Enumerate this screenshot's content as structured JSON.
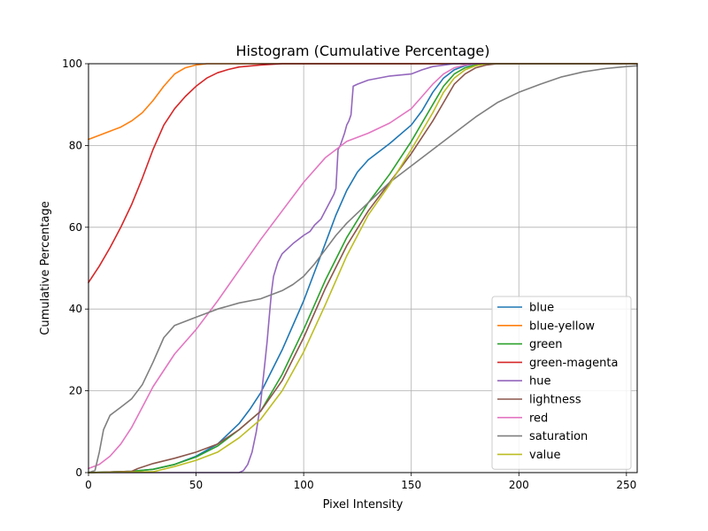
{
  "chart_data": {
    "type": "line",
    "title": "Histogram (Cumulative Percentage)",
    "xlabel": "Pixel Intensity",
    "ylabel": "Cumulative Percentage",
    "xlim": [
      0,
      255
    ],
    "ylim": [
      0,
      100
    ],
    "xticks": [
      0,
      50,
      100,
      150,
      200,
      250
    ],
    "yticks": [
      0,
      20,
      40,
      60,
      80,
      100
    ],
    "grid": true,
    "legend_position": "lower-right",
    "series": [
      {
        "name": "blue",
        "color": "#1f77b4",
        "points": [
          [
            0,
            0
          ],
          [
            20,
            0.3
          ],
          [
            30,
            0.8
          ],
          [
            40,
            2
          ],
          [
            50,
            4
          ],
          [
            60,
            7
          ],
          [
            70,
            12
          ],
          [
            75,
            15.5
          ],
          [
            80,
            19.5
          ],
          [
            90,
            30
          ],
          [
            100,
            42
          ],
          [
            105,
            49
          ],
          [
            110,
            56
          ],
          [
            115,
            63
          ],
          [
            120,
            69
          ],
          [
            125,
            73.5
          ],
          [
            130,
            76.5
          ],
          [
            140,
            80.5
          ],
          [
            150,
            85
          ],
          [
            155,
            88.5
          ],
          [
            160,
            93
          ],
          [
            165,
            96.5
          ],
          [
            170,
            98.5
          ],
          [
            175,
            99.5
          ],
          [
            180,
            100
          ],
          [
            255,
            100
          ]
        ]
      },
      {
        "name": "blue-yellow",
        "color": "#ff7f0e",
        "points": [
          [
            0,
            81.5
          ],
          [
            5,
            82.5
          ],
          [
            10,
            83.5
          ],
          [
            15,
            84.5
          ],
          [
            20,
            86
          ],
          [
            25,
            88
          ],
          [
            30,
            91
          ],
          [
            35,
            94.5
          ],
          [
            40,
            97.5
          ],
          [
            45,
            99
          ],
          [
            50,
            99.7
          ],
          [
            55,
            100
          ],
          [
            255,
            100
          ]
        ]
      },
      {
        "name": "green",
        "color": "#2ca02c",
        "points": [
          [
            0,
            0
          ],
          [
            20,
            0.3
          ],
          [
            30,
            0.8
          ],
          [
            40,
            2
          ],
          [
            50,
            3.8
          ],
          [
            60,
            6.5
          ],
          [
            70,
            10.5
          ],
          [
            80,
            15
          ],
          [
            90,
            24
          ],
          [
            100,
            35
          ],
          [
            110,
            47
          ],
          [
            120,
            57.5
          ],
          [
            130,
            66
          ],
          [
            140,
            73
          ],
          [
            150,
            81
          ],
          [
            160,
            90
          ],
          [
            165,
            94.5
          ],
          [
            170,
            97.5
          ],
          [
            175,
            99
          ],
          [
            180,
            99.7
          ],
          [
            185,
            100
          ],
          [
            255,
            100
          ]
        ]
      },
      {
        "name": "green-magenta",
        "color": "#d62728",
        "points": [
          [
            0,
            46.5
          ],
          [
            5,
            50.5
          ],
          [
            10,
            55
          ],
          [
            15,
            60
          ],
          [
            20,
            65.5
          ],
          [
            25,
            72
          ],
          [
            30,
            79
          ],
          [
            35,
            85
          ],
          [
            40,
            89
          ],
          [
            45,
            92
          ],
          [
            50,
            94.5
          ],
          [
            55,
            96.5
          ],
          [
            60,
            97.8
          ],
          [
            65,
            98.6
          ],
          [
            70,
            99.2
          ],
          [
            80,
            99.7
          ],
          [
            90,
            100
          ],
          [
            255,
            100
          ]
        ]
      },
      {
        "name": "hue",
        "color": "#9467bd",
        "points": [
          [
            0,
            0
          ],
          [
            70,
            0
          ],
          [
            72,
            0.5
          ],
          [
            74,
            2
          ],
          [
            76,
            5
          ],
          [
            78,
            10
          ],
          [
            80,
            17
          ],
          [
            81,
            22
          ],
          [
            82,
            27
          ],
          [
            83,
            32
          ],
          [
            84,
            38
          ],
          [
            85,
            44
          ],
          [
            86,
            48
          ],
          [
            88,
            51.5
          ],
          [
            90,
            53.5
          ],
          [
            95,
            56
          ],
          [
            100,
            58
          ],
          [
            103,
            59
          ],
          [
            105,
            60.5
          ],
          [
            108,
            62
          ],
          [
            110,
            64
          ],
          [
            112,
            66
          ],
          [
            114,
            68
          ],
          [
            115,
            69.5
          ],
          [
            116,
            79
          ],
          [
            117,
            80
          ],
          [
            119,
            83
          ],
          [
            120,
            85
          ],
          [
            121,
            86
          ],
          [
            122,
            87.5
          ],
          [
            123,
            94.5
          ],
          [
            125,
            95
          ],
          [
            130,
            96
          ],
          [
            140,
            97
          ],
          [
            150,
            97.5
          ],
          [
            155,
            98.5
          ],
          [
            160,
            99.3
          ],
          [
            170,
            100
          ],
          [
            255,
            100
          ]
        ]
      },
      {
        "name": "lightness",
        "color": "#8c564b",
        "points": [
          [
            0,
            0
          ],
          [
            20,
            0.3
          ],
          [
            23,
            1
          ],
          [
            30,
            2.2
          ],
          [
            40,
            3.5
          ],
          [
            50,
            5
          ],
          [
            60,
            7
          ],
          [
            70,
            10.5
          ],
          [
            80,
            15
          ],
          [
            90,
            22.5
          ],
          [
            100,
            33
          ],
          [
            110,
            45
          ],
          [
            120,
            55.5
          ],
          [
            130,
            64
          ],
          [
            140,
            71
          ],
          [
            150,
            78
          ],
          [
            160,
            86
          ],
          [
            165,
            90.5
          ],
          [
            170,
            95
          ],
          [
            175,
            97.5
          ],
          [
            180,
            99
          ],
          [
            185,
            99.7
          ],
          [
            190,
            100
          ],
          [
            255,
            100
          ]
        ]
      },
      {
        "name": "red",
        "color": "#e377c2",
        "points": [
          [
            0,
            1
          ],
          [
            5,
            2
          ],
          [
            10,
            4
          ],
          [
            15,
            7
          ],
          [
            20,
            11
          ],
          [
            25,
            16
          ],
          [
            30,
            21
          ],
          [
            40,
            29
          ],
          [
            50,
            35
          ],
          [
            60,
            42
          ],
          [
            70,
            49.5
          ],
          [
            80,
            57
          ],
          [
            90,
            64
          ],
          [
            100,
            71
          ],
          [
            110,
            77
          ],
          [
            120,
            81
          ],
          [
            130,
            83
          ],
          [
            140,
            85.5
          ],
          [
            150,
            89
          ],
          [
            155,
            92
          ],
          [
            160,
            95
          ],
          [
            165,
            97.5
          ],
          [
            170,
            99
          ],
          [
            175,
            99.7
          ],
          [
            180,
            100
          ],
          [
            255,
            100
          ]
        ]
      },
      {
        "name": "saturation",
        "color": "#7f7f7f",
        "points": [
          [
            0,
            0
          ],
          [
            3,
            0.5
          ],
          [
            5,
            5
          ],
          [
            7,
            10.5
          ],
          [
            10,
            14
          ],
          [
            15,
            16
          ],
          [
            20,
            18
          ],
          [
            25,
            21.5
          ],
          [
            30,
            27
          ],
          [
            35,
            33
          ],
          [
            40,
            36
          ],
          [
            50,
            38
          ],
          [
            60,
            40
          ],
          [
            70,
            41.5
          ],
          [
            80,
            42.5
          ],
          [
            90,
            44.5
          ],
          [
            95,
            46
          ],
          [
            100,
            48
          ],
          [
            105,
            51
          ],
          [
            110,
            54.5
          ],
          [
            115,
            58
          ],
          [
            120,
            61
          ],
          [
            130,
            66
          ],
          [
            140,
            71
          ],
          [
            150,
            75
          ],
          [
            160,
            79
          ],
          [
            170,
            83
          ],
          [
            180,
            87
          ],
          [
            190,
            90.5
          ],
          [
            200,
            93
          ],
          [
            210,
            95
          ],
          [
            220,
            96.8
          ],
          [
            230,
            98
          ],
          [
            240,
            98.8
          ],
          [
            250,
            99.3
          ],
          [
            255,
            99.5
          ]
        ]
      },
      {
        "name": "value",
        "color": "#bcbd22",
        "points": [
          [
            0,
            0
          ],
          [
            30,
            0.2
          ],
          [
            40,
            1.5
          ],
          [
            50,
            3
          ],
          [
            60,
            5
          ],
          [
            70,
            8.5
          ],
          [
            80,
            13
          ],
          [
            90,
            20
          ],
          [
            100,
            29.5
          ],
          [
            110,
            41
          ],
          [
            120,
            53
          ],
          [
            130,
            63
          ],
          [
            140,
            70.5
          ],
          [
            150,
            79
          ],
          [
            160,
            88
          ],
          [
            165,
            93
          ],
          [
            170,
            96.5
          ],
          [
            175,
            98.5
          ],
          [
            180,
            99.5
          ],
          [
            185,
            100
          ],
          [
            255,
            100
          ]
        ]
      }
    ]
  }
}
